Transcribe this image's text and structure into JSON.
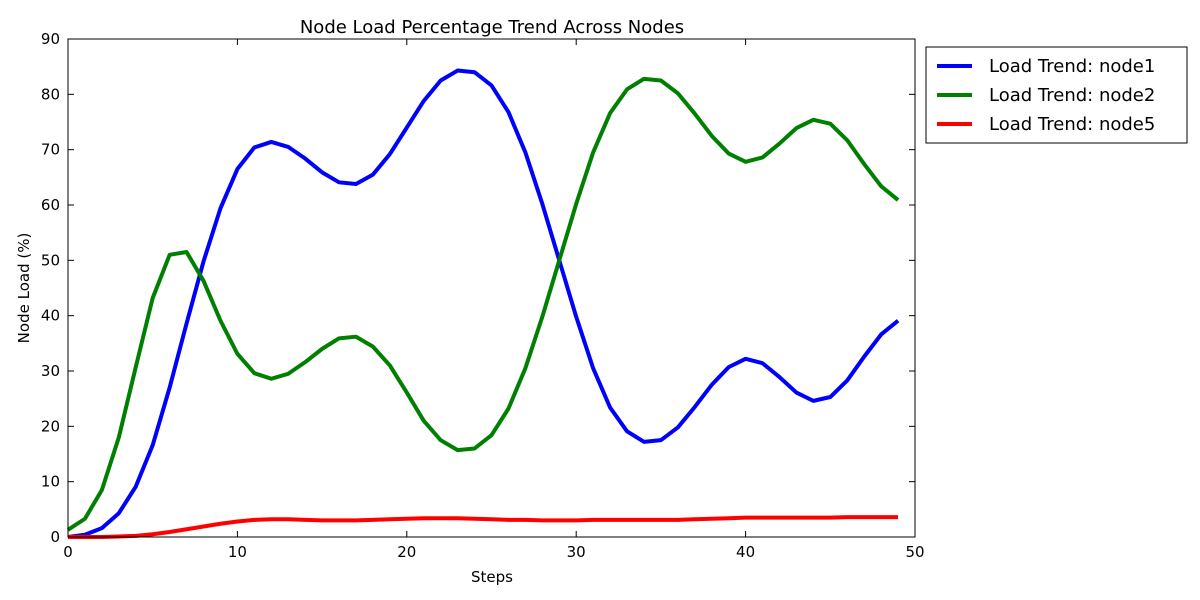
{
  "chart_data": {
    "type": "line",
    "title": "Node Load Percentage Trend Across Nodes",
    "xlabel": "Steps",
    "ylabel": "Node Load (%)",
    "xlim": [
      0,
      50
    ],
    "ylim": [
      0,
      90
    ],
    "xticks": [
      0,
      10,
      20,
      30,
      40,
      50
    ],
    "yticks": [
      0,
      10,
      20,
      30,
      40,
      50,
      60,
      70,
      80,
      90
    ],
    "grid": false,
    "legend_position": "outside-top-right",
    "x": [
      0,
      1,
      2,
      3,
      4,
      5,
      6,
      7,
      8,
      9,
      10,
      11,
      12,
      13,
      14,
      15,
      16,
      17,
      18,
      19,
      20,
      21,
      22,
      23,
      24,
      25,
      26,
      27,
      28,
      29,
      30,
      31,
      32,
      33,
      34,
      35,
      36,
      37,
      38,
      39,
      40,
      41,
      42,
      43,
      44,
      45,
      46,
      47,
      48,
      49
    ],
    "series": [
      {
        "name": "Load Trend: node1",
        "color": "#0000ff",
        "values": [
          0.0,
          0.4,
          1.6,
          4.3,
          9.1,
          16.6,
          27.0,
          38.6,
          49.8,
          59.4,
          66.5,
          70.4,
          71.4,
          70.5,
          68.4,
          65.9,
          64.1,
          63.8,
          65.5,
          69.2,
          74.0,
          78.8,
          82.5,
          84.3,
          84.0,
          81.6,
          76.8,
          69.5,
          60.2,
          50.0,
          39.8,
          30.5,
          23.4,
          19.1,
          17.2,
          17.5,
          19.8,
          23.5,
          27.5,
          30.7,
          32.2,
          31.4,
          28.9,
          26.1,
          24.6,
          25.3,
          28.3,
          32.6,
          36.6,
          39.1
        ]
      },
      {
        "name": "Load Trend: node2",
        "color": "#008000",
        "values": [
          1.3,
          3.3,
          8.5,
          18.0,
          30.7,
          43.2,
          51.0,
          51.5,
          46.3,
          39.1,
          33.1,
          29.6,
          28.6,
          29.5,
          31.6,
          34.0,
          35.9,
          36.2,
          34.4,
          31.0,
          26.1,
          21.0,
          17.5,
          15.7,
          16.0,
          18.4,
          23.2,
          30.5,
          39.8,
          50.0,
          60.2,
          69.5,
          76.6,
          80.9,
          82.8,
          82.5,
          80.2,
          76.5,
          72.5,
          69.3,
          67.8,
          68.6,
          71.1,
          73.9,
          75.4,
          74.7,
          71.7,
          67.4,
          63.4,
          60.9
        ]
      },
      {
        "name": "Load Trend: node5",
        "color": "#ff0000",
        "values": [
          0.0,
          0.0,
          0.0,
          0.1,
          0.2,
          0.5,
          0.9,
          1.4,
          1.9,
          2.4,
          2.8,
          3.1,
          3.2,
          3.2,
          3.1,
          3.0,
          3.0,
          3.0,
          3.1,
          3.2,
          3.3,
          3.4,
          3.4,
          3.4,
          3.3,
          3.2,
          3.1,
          3.1,
          3.0,
          3.0,
          3.0,
          3.1,
          3.1,
          3.1,
          3.1,
          3.1,
          3.1,
          3.2,
          3.3,
          3.4,
          3.5,
          3.5,
          3.5,
          3.5,
          3.5,
          3.5,
          3.6,
          3.6,
          3.6,
          3.6
        ]
      }
    ]
  }
}
